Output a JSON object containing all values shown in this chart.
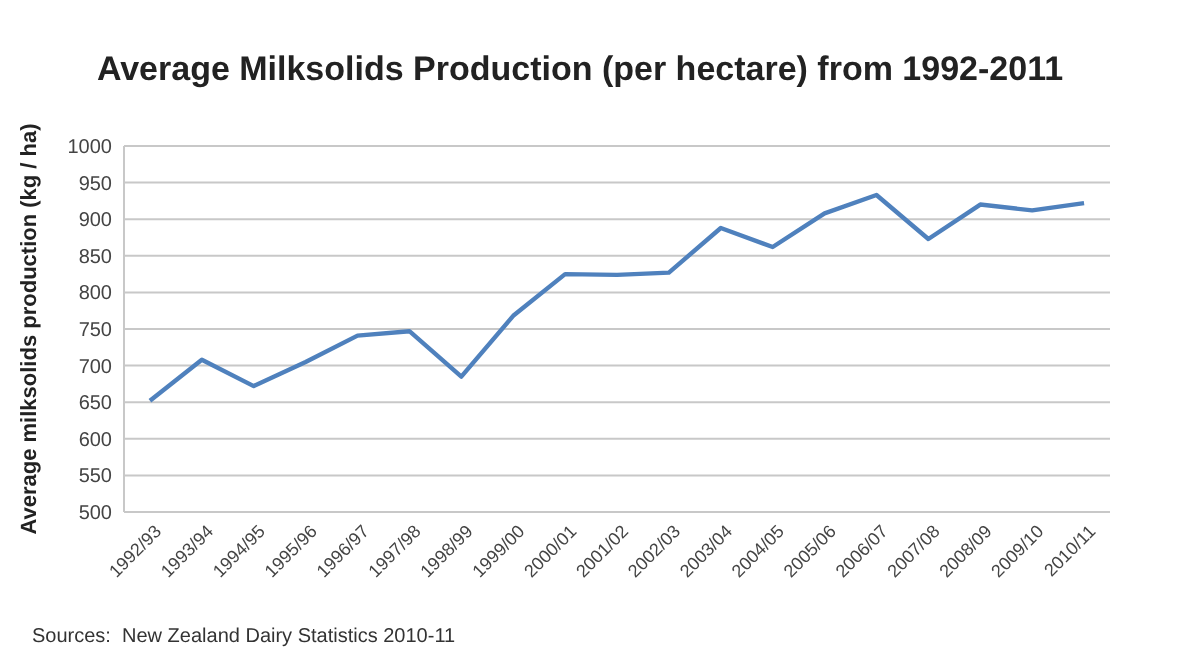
{
  "chart_data": {
    "type": "line",
    "title": "Average Milksolids Production (per hectare) from 1992-2011",
    "ylabel": "Average milksolids production (kg / ha)",
    "categories": [
      "1992/93",
      "1993/94",
      "1994/95",
      "1995/96",
      "1996/97",
      "1997/98",
      "1998/99",
      "1999/00",
      "2000/01",
      "2001/02",
      "2002/03",
      "2003/04",
      "2004/05",
      "2005/06",
      "2006/07",
      "2007/08",
      "2008/09",
      "2009/10",
      "2010/11"
    ],
    "series": [
      {
        "color": "#4f81bd",
        "values": [
          652,
          708,
          672,
          705,
          741,
          747,
          685,
          768,
          825,
          824,
          827,
          888,
          862,
          908,
          933,
          873,
          920,
          912,
          922
        ]
      }
    ],
    "ylim": [
      500,
      1000
    ],
    "yticks": [
      500,
      550,
      600,
      650,
      700,
      750,
      800,
      850,
      900,
      950,
      1000
    ],
    "grid": "y",
    "marker": "none",
    "line_style": "solid",
    "annotations": [
      "Sources:  New Zealand Dairy Statistics 2010-11"
    ]
  }
}
